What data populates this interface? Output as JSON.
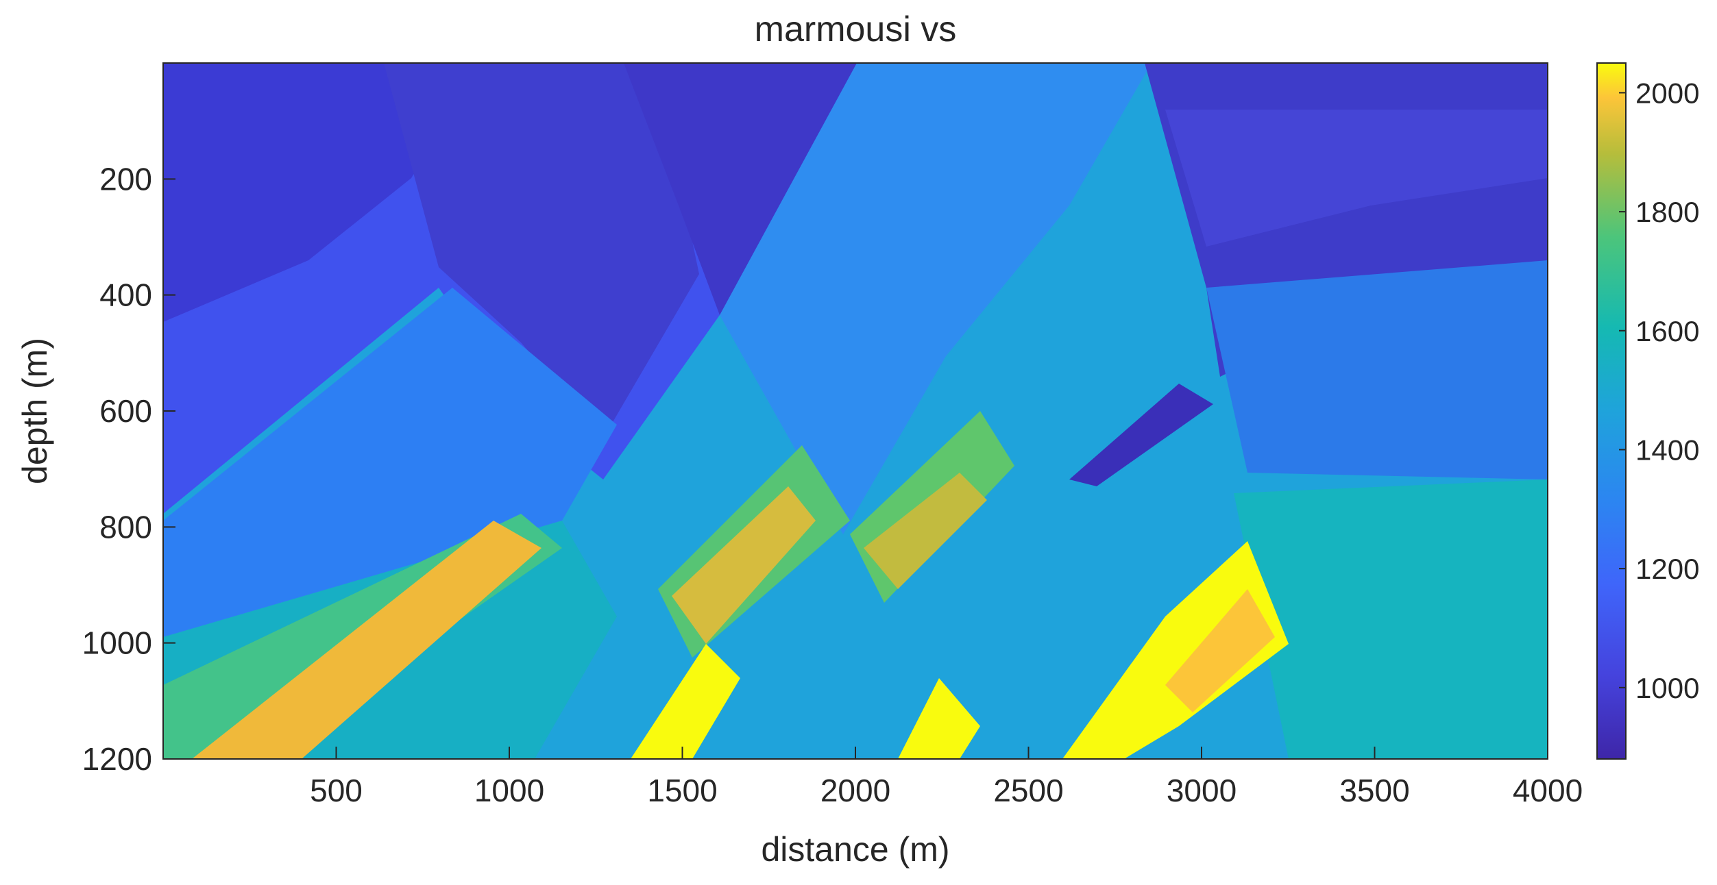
{
  "chart_data": {
    "type": "heatmap",
    "title": "marmousi vs",
    "xlabel": "distance (m)",
    "ylabel": "depth (m)",
    "xlim": [
      0,
      4000
    ],
    "ylim": [
      0,
      1200
    ],
    "y_reversed": true,
    "grid": false,
    "x_ticks": [
      500,
      1000,
      1500,
      2000,
      2500,
      3000,
      3500,
      4000
    ],
    "y_ticks": [
      200,
      400,
      600,
      800,
      1000,
      1200
    ],
    "colorbar": {
      "colormap": "parula",
      "range": [
        880,
        2050
      ],
      "ticks": [
        1000,
        1200,
        1400,
        1600,
        1800,
        2000
      ],
      "placement": "right"
    }
  }
}
